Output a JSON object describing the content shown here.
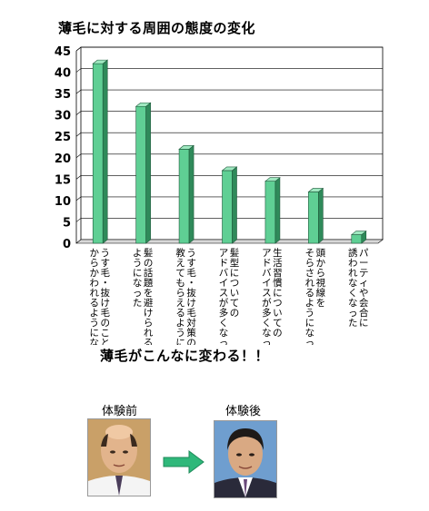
{
  "title": "薄毛に対する周囲の態度の変化",
  "subtitle": "薄毛がこんなに変わる！！",
  "before_label": "体験前",
  "after_label": "体験後",
  "icons": {
    "arrow": "right-arrow-icon",
    "before_photo": "bald-man-photo",
    "after_photo": "man-with-hair-photo"
  },
  "colors": {
    "bar_front": "#5fcf94",
    "bar_side": "#2f8a5a",
    "bar_top": "#9fe8c0",
    "arrow": "#2fb87a"
  },
  "chart_data": {
    "type": "bar",
    "categories": [
      "うす毛・抜け毛のことをからかわれるようになった",
      "髪の話題を避けられるようになった",
      "うす毛・抜け毛対策の情報を教えてもらえるようになった",
      "髪型についてのアドバイスが多くなった",
      "生活習慣についてのアドバイスが多くなった",
      "頭から視線をそらされるようになった",
      "パーティや会合に誘われなくなった"
    ],
    "category_lines": [
      [
        "うす毛・抜け毛のことを",
        "からかわれるようになった"
      ],
      [
        "髪の話題を避けられる",
        "ようになった"
      ],
      [
        "うす毛・抜け毛対策の情報を",
        "教えてもらえるようになった"
      ],
      [
        "髪型についての",
        "アドバイスが多くなった"
      ],
      [
        "生活習慣についての",
        "アドバイスが多くなった"
      ],
      [
        "頭から視線を",
        "そらされるようになった"
      ],
      [
        "パーティや会合に",
        "誘われなくなった"
      ]
    ],
    "values": [
      42,
      32,
      22,
      17,
      14.5,
      12,
      2
    ],
    "ylim": [
      0,
      45
    ],
    "yticks": [
      "0",
      "5",
      "10",
      "15",
      "20",
      "25",
      "30",
      "35",
      "40",
      "45"
    ],
    "grid": true,
    "legend": "none"
  }
}
